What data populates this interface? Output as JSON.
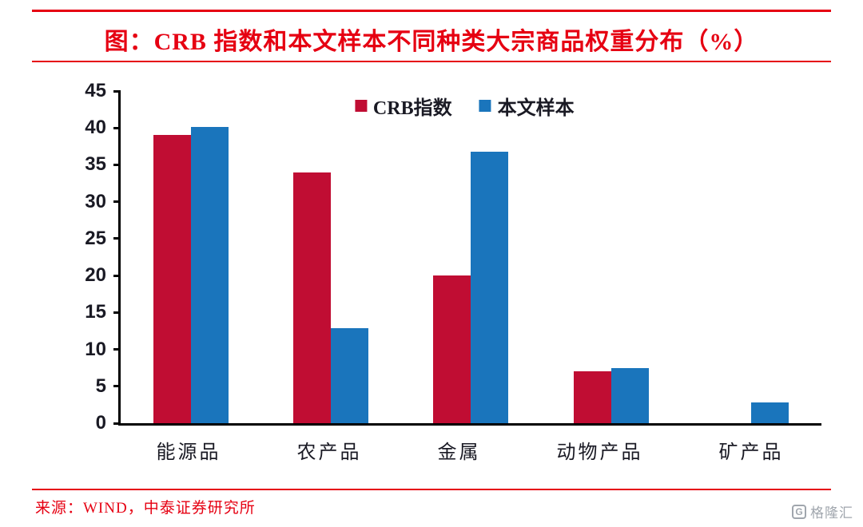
{
  "header": {
    "title": "图：CRB 指数和本文样本不同种类大宗商品权重分布（%）"
  },
  "footer": {
    "source": "来源：WIND，中泰证券研究所",
    "watermark": "格隆汇",
    "watermark_initial": "G"
  },
  "colors": {
    "accent_red": "#e60012",
    "bar_red": "#c00d33",
    "bar_blue": "#1a75bc",
    "axis_text": "#1a1a24"
  },
  "chart_data": {
    "type": "bar",
    "title": "图：CRB 指数和本文样本不同种类大宗商品权重分布（%）",
    "categories": [
      "能源品",
      "农产品",
      "金属",
      "动物产品",
      "矿产品"
    ],
    "series": [
      {
        "name": "CRB指数",
        "color": "#c00d33",
        "values": [
          39,
          34,
          20,
          7,
          0
        ]
      },
      {
        "name": "本文样本",
        "color": "#1a75bc",
        "values": [
          40.1,
          12.9,
          36.8,
          7.5,
          2.8
        ]
      }
    ],
    "ylim": [
      0,
      45
    ],
    "ytick_step": 5,
    "grid": false,
    "legend_position": "top-center",
    "source": "来源：WIND，中泰证券研究所"
  }
}
